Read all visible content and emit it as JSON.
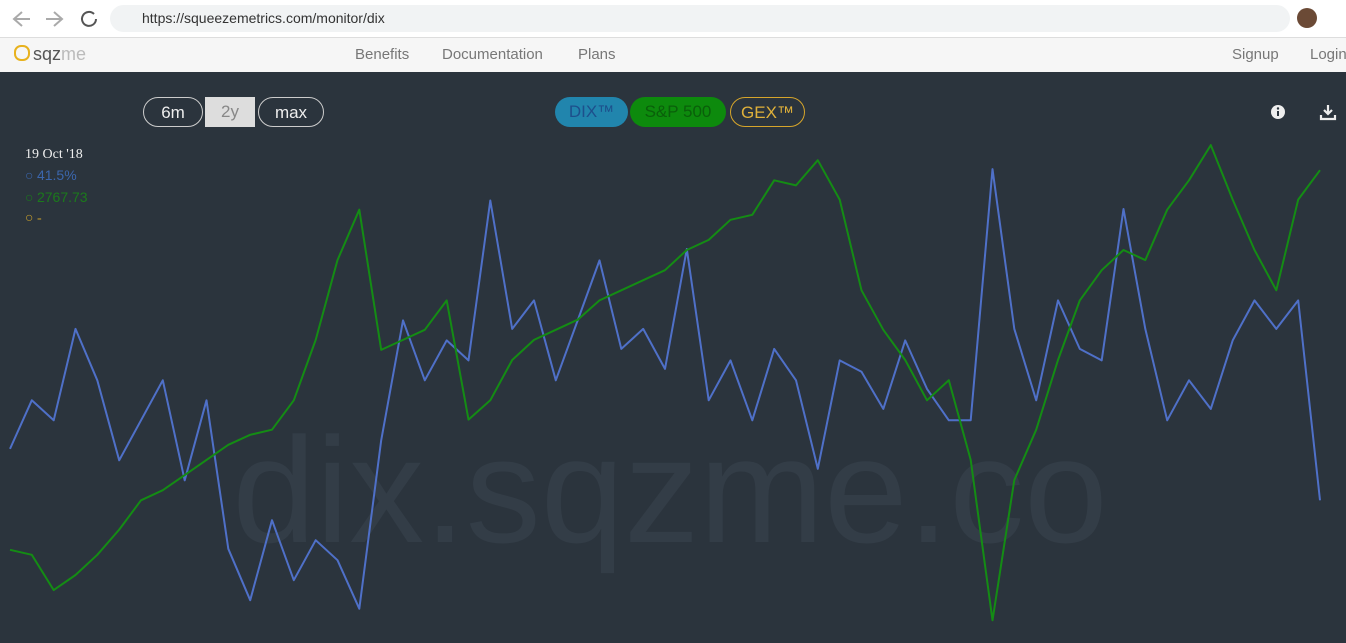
{
  "browser": {
    "url": "https://squeezemetrics.com/monitor/dix"
  },
  "nav": {
    "logo_main": "sqz",
    "logo_tail": "me",
    "links": [
      "Benefits",
      "Documentation",
      "Plans"
    ],
    "right_links": [
      "Signup",
      "Login"
    ]
  },
  "controls": {
    "ranges": [
      "6m",
      "2y",
      "max"
    ],
    "gex_label": "GEX™"
  },
  "watermark": "dix.sqzme.co",
  "tooltip": {
    "date": "19 Oct '18",
    "dix": "41.5%",
    "spx": "2767.73",
    "gex": "-"
  },
  "chart_data": {
    "type": "line",
    "categories": [
      null,
      null,
      null,
      null,
      null,
      null,
      null,
      null,
      null,
      null,
      null,
      null,
      null,
      null,
      null,
      null,
      null,
      null,
      null,
      null,
      null,
      null,
      null,
      null,
      null,
      null,
      null,
      null,
      null,
      null,
      null,
      null,
      null,
      null,
      null,
      null,
      null,
      null,
      null,
      null,
      null,
      null,
      null,
      null,
      null,
      null,
      null,
      null,
      null,
      null,
      null,
      null,
      null,
      null,
      null,
      null,
      null,
      null,
      null,
      null,
      null
    ],
    "ylim": [
      32,
      52
    ],
    "y2lim": [
      2350,
      3030
    ],
    "series": [
      {
        "name": "DIX™",
        "color": "#4f70c8",
        "values": [
          38.8,
          40.5,
          39.8,
          43.0,
          41.2,
          38.4,
          39.8,
          41.2,
          37.7,
          40.5,
          35.3,
          33.5,
          36.3,
          34.2,
          35.6,
          34.9,
          33.2,
          39.1,
          43.3,
          41.2,
          42.6,
          41.9,
          47.5,
          43.0,
          44.0,
          41.2,
          43.3,
          45.4,
          42.3,
          43.0,
          41.6,
          45.8,
          40.5,
          41.9,
          39.8,
          42.3,
          41.2,
          38.1,
          41.9,
          41.5,
          40.2,
          42.6,
          40.9,
          39.8,
          39.8,
          48.6,
          43.0,
          40.5,
          44.0,
          42.3,
          41.9,
          47.2,
          43.0,
          39.8,
          41.2,
          40.2,
          42.6,
          44.0,
          43.0,
          44.0,
          37.0
        ]
      },
      {
        "name": "S&P 500",
        "color": "#148c14",
        "axis": "y2",
        "values": [
          2461,
          2455,
          2413,
          2431,
          2455,
          2485,
          2520,
          2532,
          2550,
          2568,
          2586,
          2598,
          2604,
          2639,
          2711,
          2806,
          2866,
          2699,
          2711,
          2723,
          2758,
          2616,
          2639,
          2687,
          2711,
          2723,
          2735,
          2758,
          2770,
          2782,
          2794,
          2818,
          2830,
          2854,
          2860,
          2901,
          2895,
          2925,
          2878,
          2770,
          2723,
          2687,
          2639,
          2663,
          2568,
          2377,
          2544,
          2604,
          2687,
          2758,
          2794,
          2818,
          2806,
          2866,
          2901,
          2943,
          2878,
          2818,
          2770,
          2878,
          2913
        ]
      }
    ]
  }
}
